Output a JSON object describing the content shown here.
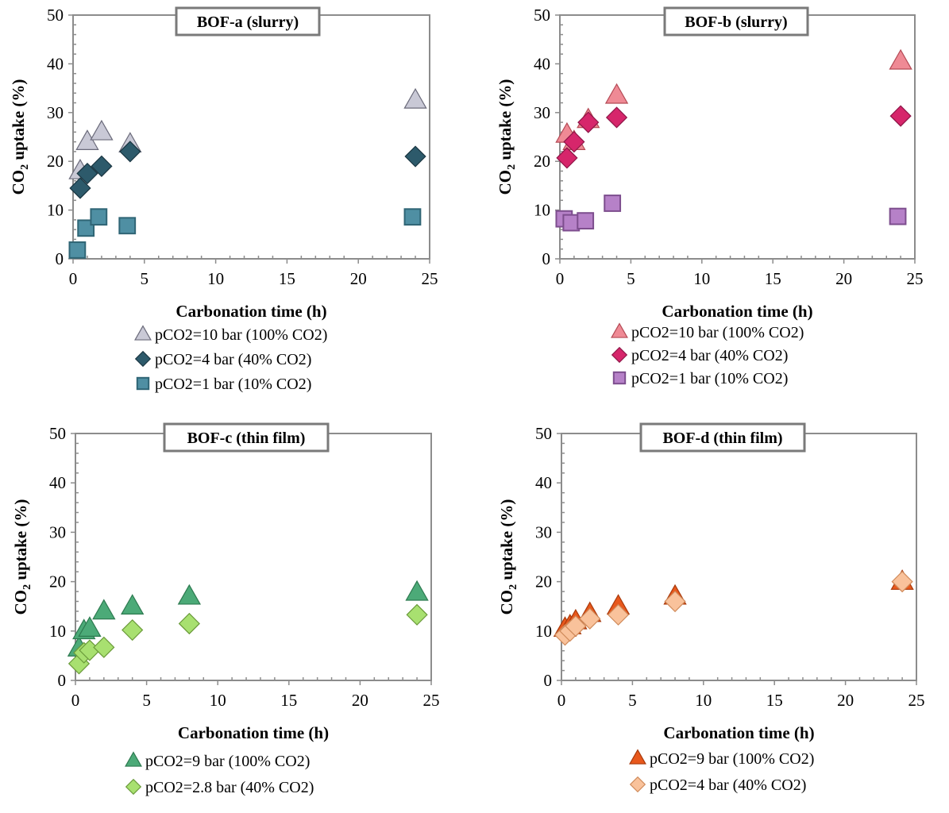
{
  "chart_data": [
    {
      "type": "scatter",
      "title": "BOF-a (slurry)",
      "xlabel": "Carbonation time (h)",
      "ylabel_main": "CO",
      "ylabel_sub": "2",
      "ylabel_rest": " uptake (%)",
      "xlim": [
        0,
        25
      ],
      "ylim": [
        0,
        50
      ],
      "xticks": [
        "0",
        "5",
        "10",
        "15",
        "20",
        "25"
      ],
      "yticks": [
        "0",
        "10",
        "20",
        "30",
        "40",
        "50"
      ],
      "grid": false,
      "legend_position": "bottom",
      "series": [
        {
          "name": "pCO2=10 bar  (100% CO2)",
          "marker": "triangle",
          "color": "#c9c9d6",
          "stroke": "#6a6a7a",
          "x": [
            0.5,
            1,
            2,
            4,
            24
          ],
          "y": [
            18,
            24,
            26,
            23.5,
            32.5
          ]
        },
        {
          "name": "pCO2=4 bar  (40% CO2)",
          "marker": "diamond",
          "color": "#2d5a6b",
          "stroke": "#1a3642",
          "x": [
            0.5,
            1,
            2,
            4,
            24
          ],
          "y": [
            14.5,
            17.5,
            19,
            22,
            21
          ]
        },
        {
          "name": "pCO2=1 bar  (10% CO2)",
          "marker": "square",
          "color": "#4f8fa3",
          "stroke": "#2f6575",
          "x": [
            0.3,
            0.9,
            1.8,
            3.8,
            23.8
          ],
          "y": [
            1.8,
            6.3,
            8.6,
            6.8,
            8.6
          ]
        }
      ]
    },
    {
      "type": "scatter",
      "title": "BOF-b (slurry)",
      "xlabel": "Carbonation time (h)",
      "ylabel_main": "CO",
      "ylabel_sub": "2",
      "ylabel_rest": " uptake (%)",
      "xlim": [
        0,
        25
      ],
      "ylim": [
        0,
        50
      ],
      "xticks": [
        "0",
        "5",
        "10",
        "15",
        "20",
        "25"
      ],
      "yticks": [
        "0",
        "10",
        "20",
        "30",
        "40",
        "50"
      ],
      "grid": false,
      "legend_position": "bottom",
      "series": [
        {
          "name": "pCO2=10 bar  (100% CO2)",
          "marker": "triangle",
          "color": "#ef8a95",
          "stroke": "#b44a55",
          "x": [
            0.5,
            1,
            2,
            4,
            24
          ],
          "y": [
            25.5,
            24,
            28.5,
            33.5,
            40.5
          ]
        },
        {
          "name": "pCO2=4 bar  (40% CO2)",
          "marker": "diamond",
          "color": "#d6266b",
          "stroke": "#8e1547",
          "x": [
            0.5,
            1,
            2,
            4,
            24
          ],
          "y": [
            20.7,
            24,
            28,
            29,
            29.3
          ]
        },
        {
          "name": "pCO2=1 bar (10% CO2)",
          "marker": "square",
          "color": "#b681c8",
          "stroke": "#7d4e8e",
          "x": [
            0.3,
            0.8,
            1.8,
            3.7,
            23.8
          ],
          "y": [
            8.2,
            7.4,
            7.8,
            11.4,
            8.7
          ]
        }
      ]
    },
    {
      "type": "scatter",
      "title": "BOF-c (thin film)",
      "xlabel": "Carbonation time (h)",
      "ylabel_main": "CO",
      "ylabel_sub": "2",
      "ylabel_rest": " uptake (%)",
      "xlim": [
        0,
        25
      ],
      "ylim": [
        0,
        50
      ],
      "xticks": [
        "0",
        "5",
        "10",
        "15",
        "20",
        "25"
      ],
      "yticks": [
        "0",
        "10",
        "20",
        "30",
        "40",
        "50"
      ],
      "grid": false,
      "legend_position": "bottom",
      "series": [
        {
          "name": "pCO2=9 bar  (100% CO2)",
          "marker": "triangle",
          "color": "#4caa78",
          "stroke": "#2d7a50",
          "x": [
            0.25,
            0.6,
            1,
            2,
            4,
            8,
            24
          ],
          "y": [
            6.5,
            10,
            10.5,
            14,
            15,
            17,
            17.8
          ]
        },
        {
          "name": "pCO2=2.8 bar  (40% CO2)",
          "marker": "diamond",
          "color": "#a8e070",
          "stroke": "#6a9a3a",
          "x": [
            0.25,
            0.6,
            1,
            2,
            4,
            8,
            24
          ],
          "y": [
            3.4,
            5.6,
            6.1,
            6.7,
            10.2,
            11.5,
            13.3
          ]
        }
      ]
    },
    {
      "type": "scatter",
      "title": "BOF-d (thin film)",
      "xlabel": "Carbonation time (h)",
      "ylabel_main": "CO",
      "ylabel_sub": "2",
      "ylabel_rest": " uptake (%)",
      "xlim": [
        0,
        25
      ],
      "ylim": [
        0,
        50
      ],
      "xticks": [
        "0",
        "5",
        "10",
        "15",
        "20",
        "25"
      ],
      "yticks": [
        "0",
        "10",
        "20",
        "30",
        "40",
        "50"
      ],
      "grid": false,
      "legend_position": "bottom",
      "series": [
        {
          "name": "pCO2=9 bar  (100% CO2)",
          "marker": "triangle",
          "color": "#e8581c",
          "stroke": "#a83a0c",
          "x": [
            0.25,
            0.6,
            1,
            2,
            4,
            8,
            24
          ],
          "y": [
            10.5,
            11,
            12,
            13.5,
            15,
            17,
            20
          ]
        },
        {
          "name": "pCO2=4 bar  (40% CO2)",
          "marker": "diamond",
          "color": "#f9c29b",
          "stroke": "#d08a5a",
          "x": [
            0.25,
            0.6,
            1,
            2,
            4,
            8,
            24
          ],
          "y": [
            9.2,
            10,
            11,
            12.5,
            13.3,
            16,
            20
          ]
        }
      ]
    }
  ]
}
